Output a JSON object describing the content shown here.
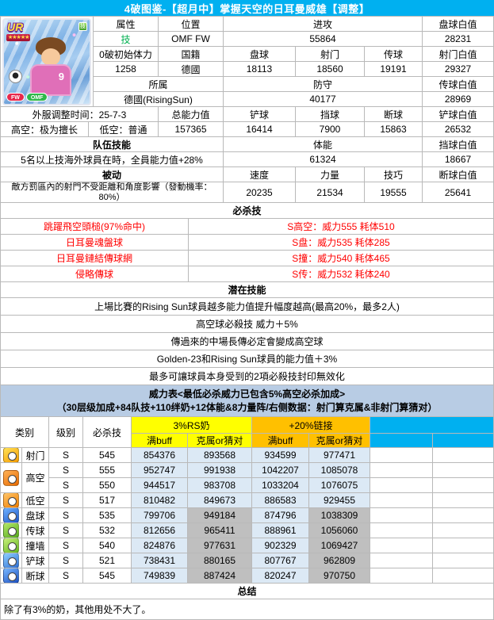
{
  "title": "4破图鉴-【超月中】掌握天空的日耳曼威雄【调整】",
  "card": {
    "rarity": "UR",
    "stars": "★★★★★",
    "attribute_chip": "技",
    "jersey_number": "9",
    "badge_fw": "FW",
    "badge_omf": "OMF"
  },
  "stats": {
    "attr_label": "属性",
    "attr_value": "技",
    "pos_label": "位置",
    "pos_value": "OMF FW",
    "attack_label": "进攻",
    "attack_value": "55864",
    "dribble_white_label": "盘球白值",
    "dribble_white_value": "28231",
    "stamina0_label": "0破初始体力",
    "stamina0_value": "1258",
    "nation_label": "国籍",
    "nation_value": "德國",
    "dribble_label": "盘球",
    "dribble_value": "18113",
    "shot_label": "射门",
    "shot_value": "18560",
    "pass_label": "传球",
    "pass_value": "19191",
    "shot_white_label": "射门白值",
    "shot_white_value": "29327",
    "team_label": "所属",
    "team_value": "德國(RisingSun)",
    "defense_label": "防守",
    "defense_value": "40177",
    "pass_white_label": "传球白值",
    "pass_white_value": "28969",
    "adjust_time_label": "外服调整时间：25-7-3",
    "total_label": "总能力值",
    "total_value": "157365",
    "tackle_label": "铲球",
    "tackle_value": "16414",
    "block_label": "挡球",
    "block_value": "7900",
    "intercept_label": "断球",
    "intercept_value": "15863",
    "tackle_white_label": "铲球白值",
    "tackle_white_value": "26532",
    "high_label": "高空：极为擅长",
    "low_label": "低空：普通",
    "team_skill_label": "队伍技能",
    "stamina_label": "体能",
    "stamina_value": "61324",
    "block_white_label": "挡球白值",
    "block_white_value": "18667",
    "team_skill_text": "5名以上技海外球員在時，全員能力值+28%",
    "passive_label": "被动",
    "speed_label": "速度",
    "speed_value": "20235",
    "power_label": "力量",
    "power_value": "21534",
    "tech_label": "技巧",
    "tech_value": "19555",
    "intercept_white_label": "断球白值",
    "intercept_white_value": "25641",
    "passive_text": "敵方罰區內的射門不受距離和角度影響（發動機率：80%）"
  },
  "specials": {
    "header": "必杀技",
    "items": [
      {
        "name": "跳躍飛空頭槌(97%命中)",
        "info": "S高空：威力555 耗体510"
      },
      {
        "name": "日耳曼魂盤球",
        "info": "S盘：威力535 耗体285"
      },
      {
        "name": "日耳曼鏈結傳球網",
        "info": "S撞：威力540 耗体465"
      },
      {
        "name": "侵略傳球",
        "info": "S传：威力532 耗体240"
      }
    ]
  },
  "potentials": {
    "header": "潜在技能",
    "items": [
      "上場比賽的Rising Sun球員越多能力值提升幅度越高(最高20%，最多2人)",
      "高空球必殺技 威力＋5%",
      "傳過來的中場長傳必定會變成高空球",
      "Golden-23和Rising Sun球員的能力值＋3%",
      "最多可讓球員本身受到的2項必殺技封印無效化"
    ]
  },
  "power_table": {
    "banner_line1": "威力表<最低必杀威力已包含5%高空必杀加成>",
    "banner_line2": "（30层级加成+84队技+110绊奶+12体能&8力量阵/右侧数据：射门算克属&非射门算猜对）",
    "col_category": "类别",
    "col_grade": "级别",
    "col_skill": "必杀技",
    "group1": "3%RS奶",
    "group2": "+20%链接",
    "sub_full": "满buff",
    "sub_counter": "克属or猜对",
    "rows": [
      {
        "icon": "shoot-icon",
        "category": "射门",
        "grade": "S",
        "skill": "545",
        "g1_full": "854376",
        "g1_counter": "893568",
        "g2_full": "934599",
        "g2_counter": "977471",
        "gray": false
      },
      {
        "icon": "high-ball-icon",
        "category": "高空",
        "grade": "S",
        "skill": "555",
        "g1_full": "952747",
        "g1_counter": "991938",
        "g2_full": "1042207",
        "g2_counter": "1085078",
        "gray": false
      },
      {
        "icon": "high-ball-icon",
        "category": "高空",
        "grade": "S",
        "skill": "550",
        "g1_full": "944517",
        "g1_counter": "983708",
        "g2_full": "1033204",
        "g2_counter": "1076075",
        "gray": false
      },
      {
        "icon": "low-ball-icon",
        "category": "低空",
        "grade": "S",
        "skill": "517",
        "g1_full": "810482",
        "g1_counter": "849673",
        "g2_full": "886583",
        "g2_counter": "929455",
        "gray": false
      },
      {
        "icon": "dribble-icon",
        "category": "盘球",
        "grade": "S",
        "skill": "535",
        "g1_full": "799706",
        "g1_counter": "949184",
        "g2_full": "874796",
        "g2_counter": "1038309",
        "gray": true
      },
      {
        "icon": "pass-icon",
        "category": "传球",
        "grade": "S",
        "skill": "532",
        "g1_full": "812656",
        "g1_counter": "965411",
        "g2_full": "888961",
        "g2_counter": "1056060",
        "gray": true
      },
      {
        "icon": "wall-pass-icon",
        "category": "撞墙",
        "grade": "S",
        "skill": "540",
        "g1_full": "824876",
        "g1_counter": "977631",
        "g2_full": "902329",
        "g2_counter": "1069427",
        "gray": true
      },
      {
        "icon": "tackle-icon",
        "category": "铲球",
        "grade": "S",
        "skill": "521",
        "g1_full": "738431",
        "g1_counter": "880165",
        "g2_full": "807767",
        "g2_counter": "962809",
        "gray": true
      },
      {
        "icon": "intercept-icon",
        "category": "断球",
        "grade": "S",
        "skill": "545",
        "g1_full": "749839",
        "g1_counter": "887424",
        "g2_full": "820247",
        "g2_counter": "970750",
        "gray": true
      }
    ]
  },
  "summary": {
    "header": "总结",
    "text": "除了有3%的奶，其他用处不大了。"
  },
  "colors": {
    "accent_blue": "#00B0F0",
    "banner_blue": "#B8CCE4",
    "yellow": "#FFFF00",
    "orange": "#FFC000",
    "cell_blue": "#DCE9F5",
    "cell_gray": "#BFBFBF",
    "red": "#FF0000",
    "green": "#00B050"
  }
}
